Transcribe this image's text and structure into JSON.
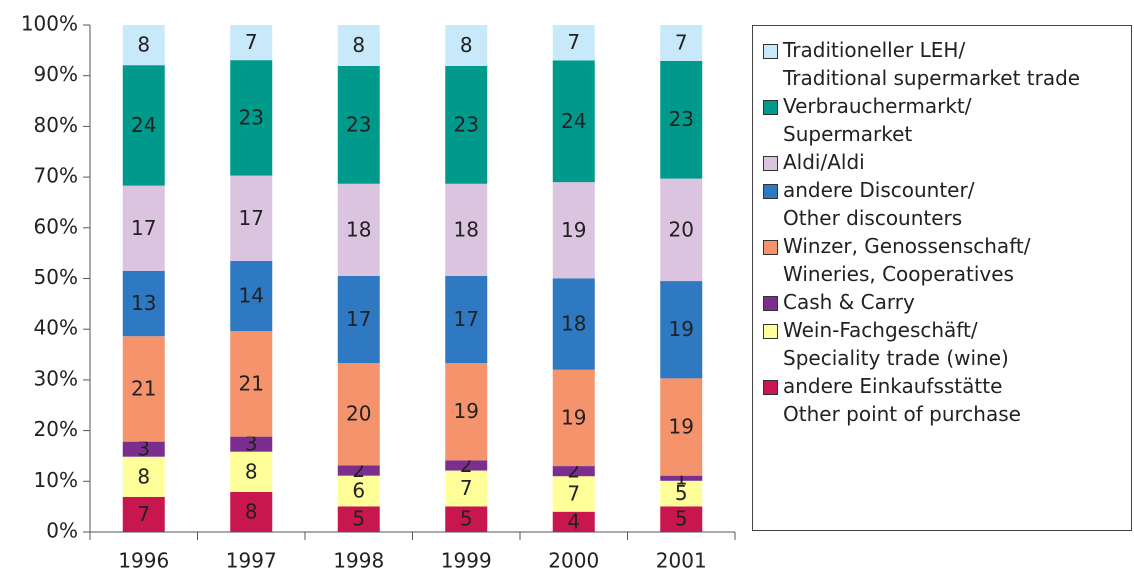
{
  "chart_data": {
    "type": "bar",
    "stacked": "percent",
    "categories": [
      "1996",
      "1997",
      "1998",
      "1999",
      "2000",
      "2001"
    ],
    "ylim": [
      0,
      100
    ],
    "yticks": [
      {
        "value": 0,
        "label": "0%"
      },
      {
        "value": 10,
        "label": "10%"
      },
      {
        "value": 20,
        "label": "20%"
      },
      {
        "value": 30,
        "label": "30%"
      },
      {
        "value": 40,
        "label": "40%"
      },
      {
        "value": 50,
        "label": "50%"
      },
      {
        "value": 60,
        "label": "60%"
      },
      {
        "value": 70,
        "label": "70%"
      },
      {
        "value": 80,
        "label": "80%"
      },
      {
        "value": 90,
        "label": "90%"
      },
      {
        "value": 100,
        "label": "100%"
      }
    ],
    "legend": "right",
    "series": [
      {
        "name": "andere Einkaufsstätte\nOther point of purchase",
        "color": "#c8174f",
        "values": [
          7,
          8,
          5,
          5,
          4,
          5
        ]
      },
      {
        "name": "Wein-Fachgeschäft/\nSpeciality trade (wine)",
        "color": "#ffff99",
        "values": [
          8,
          8,
          6,
          7,
          7,
          5
        ]
      },
      {
        "name": "Cash & Carry",
        "color": "#7b2e8e",
        "values": [
          3,
          3,
          2,
          2,
          2,
          1
        ]
      },
      {
        "name": "Winzer, Genossenschaft/\nWineries, Cooperatives",
        "color": "#f4936c",
        "values": [
          21,
          21,
          20,
          19,
          19,
          19
        ]
      },
      {
        "name": "andere Discounter/\nOther discounters",
        "color": "#2f78c2",
        "values": [
          13,
          14,
          17,
          17,
          18,
          19
        ]
      },
      {
        "name": "Aldi/Aldi",
        "color": "#dac4e0",
        "values": [
          17,
          17,
          18,
          18,
          19,
          20
        ]
      },
      {
        "name": "Verbrauchermarkt/\nSupermarket",
        "color": "#009a8c",
        "values": [
          24,
          23,
          23,
          23,
          24,
          23
        ]
      },
      {
        "name": "Traditioneller LEH/\nTraditional supermarket trade",
        "color": "#c7e9f9",
        "values": [
          8,
          7,
          8,
          8,
          7,
          7
        ]
      }
    ]
  }
}
